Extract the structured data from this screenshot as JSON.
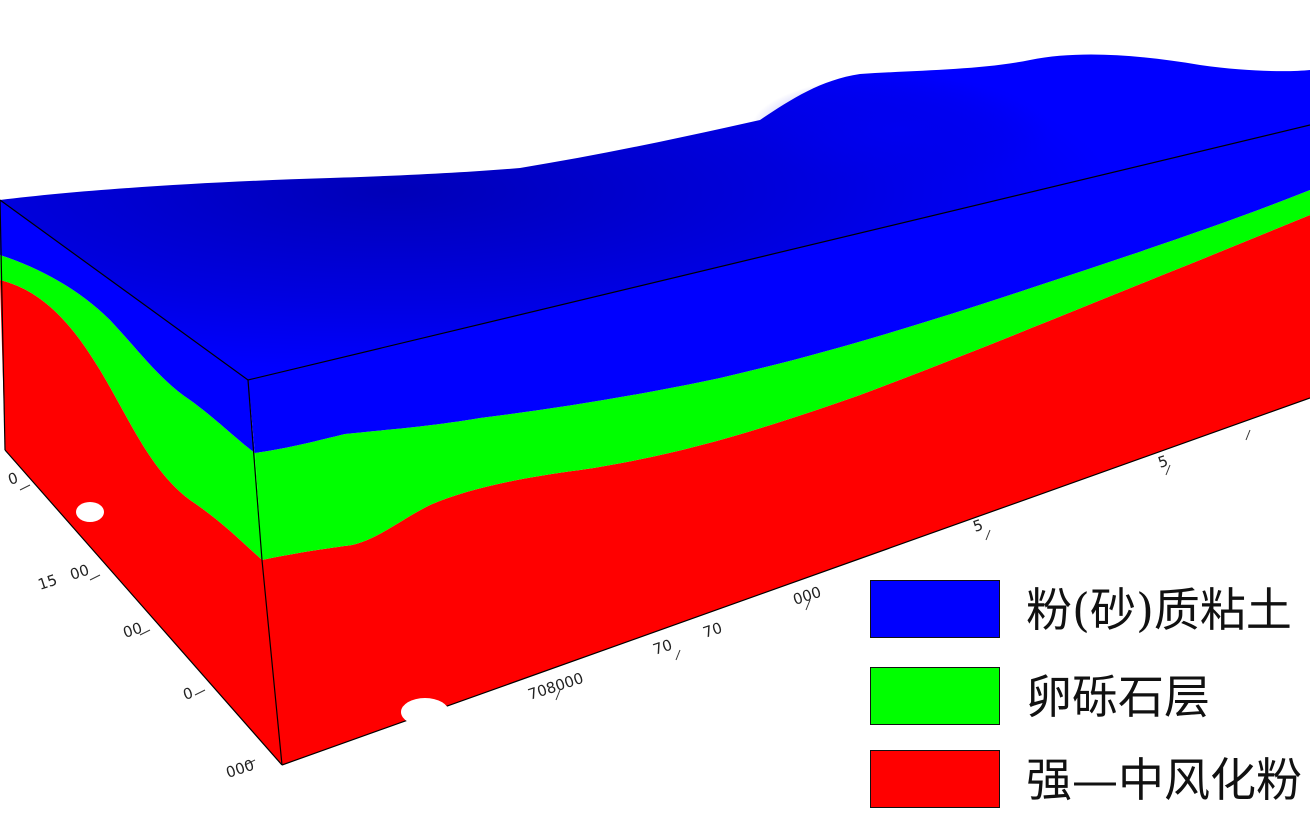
{
  "layers": [
    {
      "name": "粉(砂)质粘土",
      "color": "#0000ff"
    },
    {
      "name": "卵砾石层",
      "color": "#00ff00"
    },
    {
      "name": "强—中风化粉",
      "color": "#ff0000"
    }
  ],
  "axis_ticks": {
    "x": [
      "708000",
      "70",
      "70",
      "000",
      "5",
      "5"
    ],
    "y": [
      "0",
      "15",
      "00",
      "00",
      "0",
      "000"
    ]
  }
}
